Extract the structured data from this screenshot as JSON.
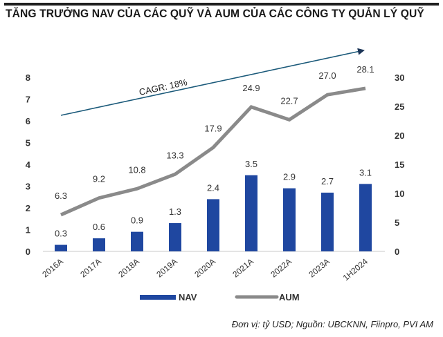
{
  "header": {
    "title": "TĂNG TRƯỞNG NAV CỦA CÁC QUỸ VÀ AUM CỦA CÁC CÔNG TY QUẢN LÝ QUỸ"
  },
  "footer": {
    "source": "Đơn vị: tỷ USD; Nguồn: UBCKNN, Fiinpro, PVI AM"
  },
  "colors": {
    "nav_bar": "#1f47a0",
    "aum_line": "#8a8a8a",
    "cagr_arrow": "#1b5a7a",
    "arrow_head": "#1c3557",
    "axis_line": "#c8c8c8"
  },
  "chart_data": {
    "type": "bar",
    "title": "TĂNG TRƯỞNG NAV CỦA CÁC QUỸ VÀ AUM CỦA CÁC CÔNG TY QUẢN LÝ QUỸ",
    "categories": [
      "2016A",
      "2017A",
      "2018A",
      "2019A",
      "2020A",
      "2021A",
      "2022A",
      "2023A",
      "1H2024"
    ],
    "series": [
      {
        "name": "NAV",
        "type": "bar",
        "axis": "left",
        "values": [
          0.3,
          0.6,
          0.9,
          1.3,
          2.4,
          3.5,
          2.9,
          2.7,
          3.1
        ],
        "labels": [
          "0.3",
          "0.6",
          "0.9",
          "1.3",
          "2.4",
          "3.5",
          "2.9",
          "2.7",
          "3.1"
        ]
      },
      {
        "name": "AUM",
        "type": "line",
        "axis": "right",
        "values": [
          6.3,
          9.2,
          10.8,
          13.3,
          17.9,
          24.9,
          22.7,
          27.0,
          28.1
        ],
        "labels": [
          "6.3",
          "9.2",
          "10.8",
          "13.3",
          "17.9",
          "24.9",
          "22.7",
          "27.0",
          "28.1"
        ]
      }
    ],
    "left_axis": {
      "range": [
        0,
        8
      ],
      "ticks": [
        "0",
        "1",
        "2",
        "3",
        "4",
        "5",
        "6",
        "7",
        "8"
      ]
    },
    "right_axis": {
      "range": [
        0,
        30
      ],
      "ticks": [
        "0",
        "5",
        "10",
        "15",
        "20",
        "25",
        "30"
      ]
    },
    "xlabel": "",
    "ylabel": "",
    "grid": false,
    "legend": {
      "position": "bottom",
      "items": [
        "NAV",
        "AUM"
      ]
    },
    "annotations": [
      {
        "type": "trend-arrow",
        "text": "CAGR: 18%"
      }
    ]
  }
}
